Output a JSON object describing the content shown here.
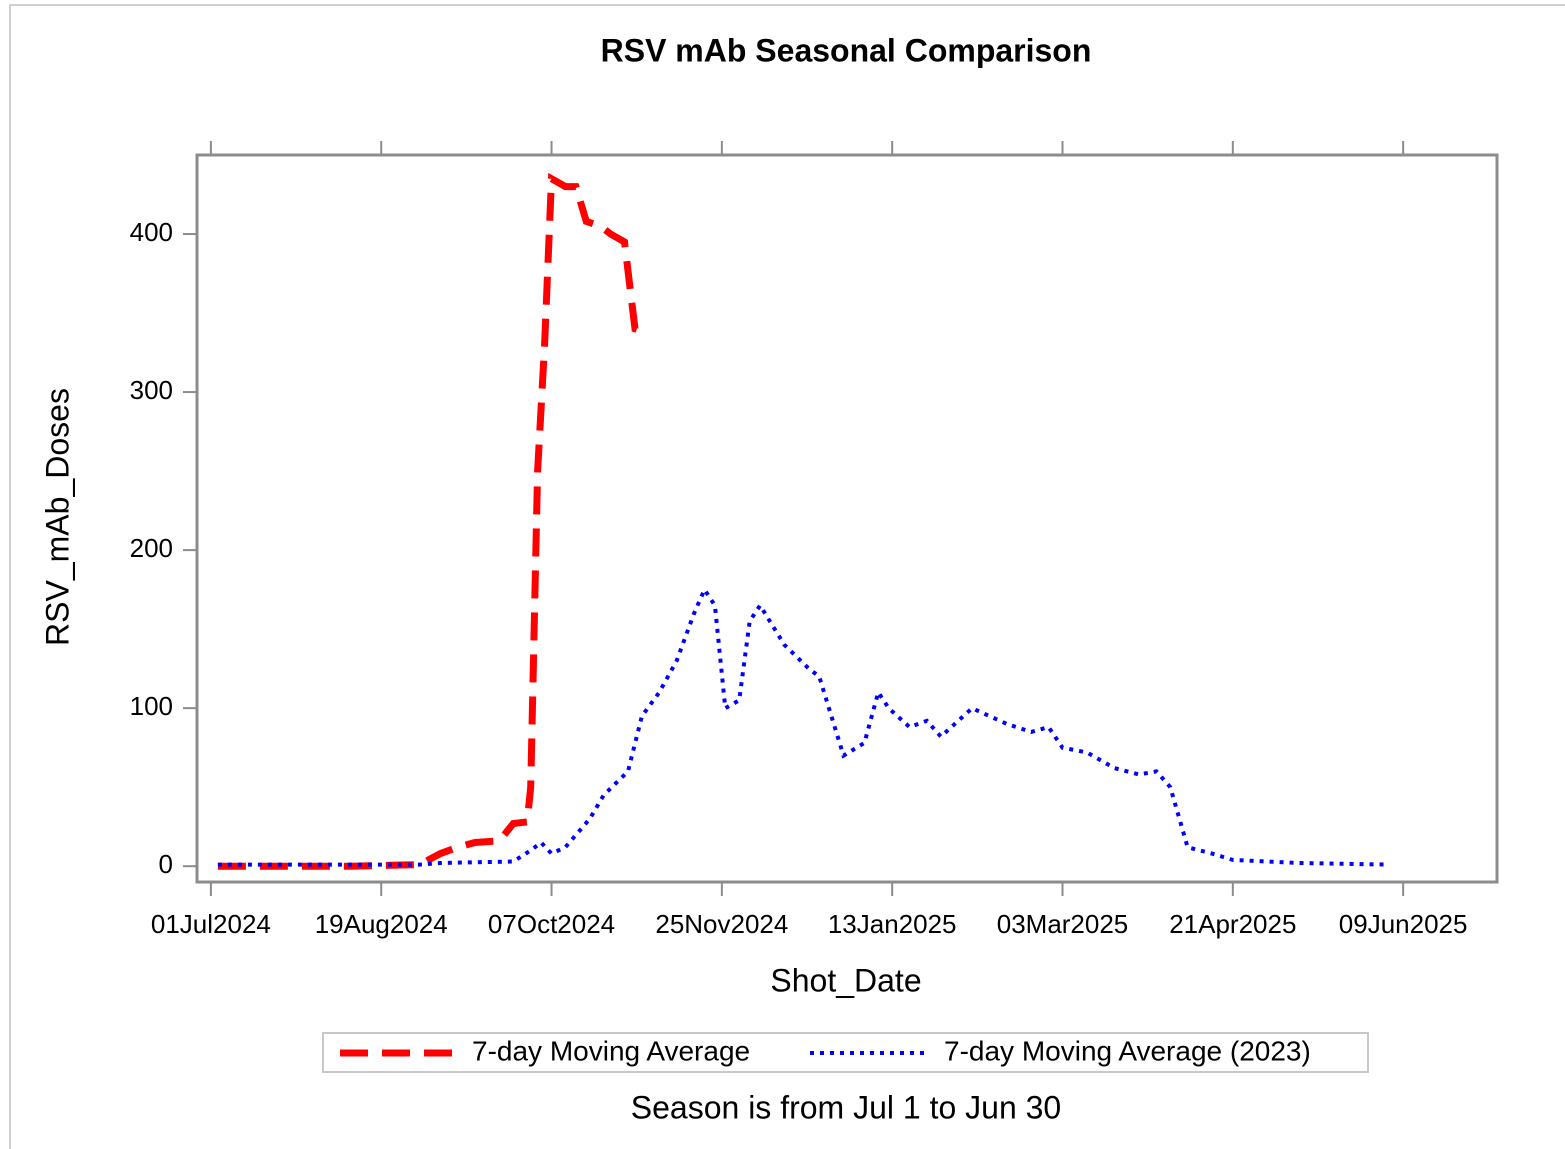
{
  "chart_data": {
    "type": "line",
    "title": "RSV mAb Seasonal Comparison",
    "x_label": "Shot_Date",
    "y_label": "RSV_mAb_Doses",
    "footnote": "Season is from Jul 1 to Jun 30",
    "xlim": [
      "2024-06-27",
      "2025-07-06"
    ],
    "xticks": [
      {
        "value": "2024-07-01",
        "label": "01Jul2024"
      },
      {
        "value": "2024-08-19",
        "label": "19Aug2024"
      },
      {
        "value": "2024-10-07",
        "label": "07Oct2024"
      },
      {
        "value": "2024-11-25",
        "label": "25Nov2024"
      },
      {
        "value": "2025-01-13",
        "label": "13Jan2025"
      },
      {
        "value": "2025-03-03",
        "label": "03Mar2025"
      },
      {
        "value": "2025-04-21",
        "label": "21Apr2025"
      },
      {
        "value": "2025-06-09",
        "label": "09Jun2025"
      }
    ],
    "ylim": [
      -10,
      450
    ],
    "yticks": [
      0,
      100,
      200,
      300,
      400
    ],
    "grid": false,
    "legend": "bottom",
    "series": [
      {
        "name": "7-day Moving Average",
        "color": "#ff0000",
        "dash": "dashed",
        "x": [
          "2024-07-03",
          "2024-07-20",
          "2024-08-10",
          "2024-08-30",
          "2024-09-05",
          "2024-09-10",
          "2024-09-15",
          "2024-09-22",
          "2024-09-26",
          "2024-09-30",
          "2024-10-01",
          "2024-10-03",
          "2024-10-05",
          "2024-10-07",
          "2024-10-11",
          "2024-10-14",
          "2024-10-17",
          "2024-10-21",
          "2024-10-24",
          "2024-10-28",
          "2024-10-31",
          "2024-11-03"
        ],
        "values": [
          0,
          0,
          0,
          1,
          8,
          12,
          15,
          16,
          27,
          28,
          50,
          250,
          330,
          435,
          430,
          430,
          408,
          405,
          400,
          395,
          340,
          338
        ]
      },
      {
        "name": "7-day Moving Average (2023)",
        "color": "#0000ff",
        "dash": "dotted",
        "x": [
          "2024-07-03",
          "2024-08-30",
          "2024-09-05",
          "2024-09-26",
          "2024-10-01",
          "2024-10-04",
          "2024-10-07",
          "2024-10-11",
          "2024-10-18",
          "2024-10-22",
          "2024-10-29",
          "2024-11-02",
          "2024-11-07",
          "2024-11-12",
          "2024-11-17",
          "2024-11-20",
          "2024-11-23",
          "2024-11-26",
          "2024-11-30",
          "2024-12-03",
          "2024-12-06",
          "2024-12-13",
          "2024-12-20",
          "2024-12-23",
          "2024-12-30",
          "2025-01-05",
          "2025-01-09",
          "2025-01-12",
          "2025-01-18",
          "2025-01-23",
          "2025-01-27",
          "2025-02-05",
          "2025-02-15",
          "2025-02-22",
          "2025-02-27",
          "2025-03-03",
          "2025-03-10",
          "2025-03-18",
          "2025-03-25",
          "2025-03-30",
          "2025-04-03",
          "2025-04-08",
          "2025-04-15",
          "2025-04-21",
          "2025-05-10",
          "2025-06-05"
        ],
        "values": [
          1,
          1,
          2,
          3,
          10,
          15,
          8,
          12,
          30,
          45,
          60,
          95,
          110,
          130,
          160,
          175,
          165,
          100,
          105,
          155,
          165,
          140,
          125,
          120,
          70,
          78,
          110,
          100,
          88,
          92,
          82,
          100,
          90,
          85,
          88,
          75,
          72,
          62,
          58,
          60,
          50,
          12,
          8,
          4,
          2,
          1
        ]
      }
    ]
  }
}
